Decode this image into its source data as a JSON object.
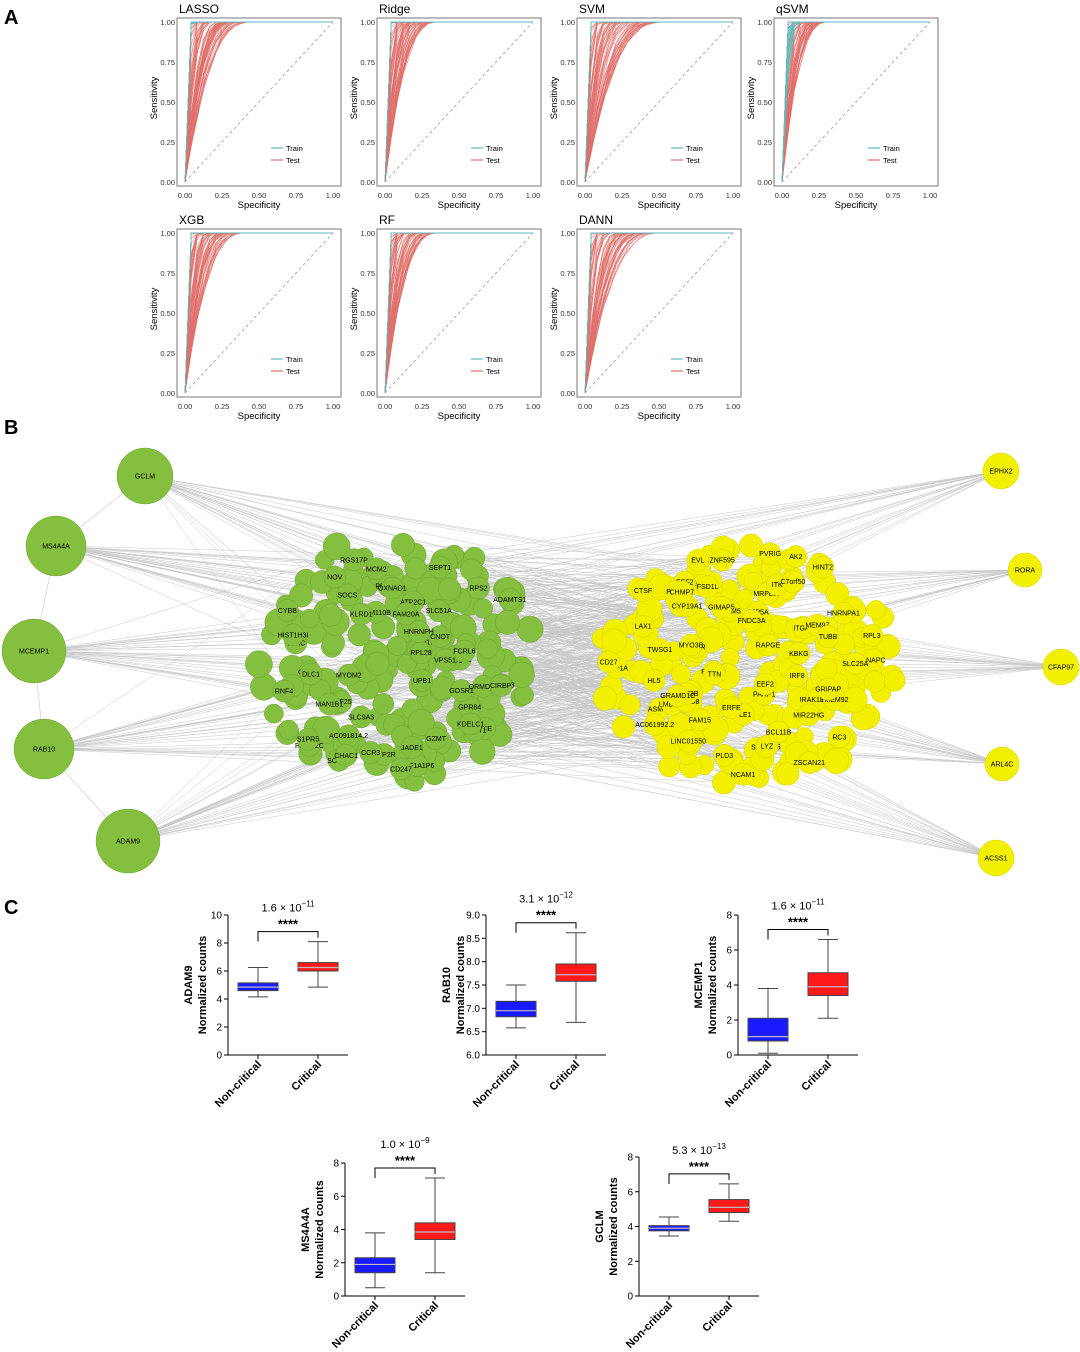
{
  "panels": {
    "a": "A",
    "b": "B",
    "c": "C"
  },
  "chart_data": [
    {
      "type": "line",
      "panel": "A",
      "x_label": "Specificity",
      "y_label": "Sensitivity",
      "x_ticks": [
        "0.00",
        "0.25",
        "0.50",
        "0.75",
        "1.00"
      ],
      "y_ticks": [
        "0.00",
        "0.25",
        "0.50",
        "0.75",
        "1.00"
      ],
      "xlim": [
        0,
        1
      ],
      "ylim": [
        0,
        1
      ],
      "legend": [
        {
          "name": "Train",
          "color": "#5fbcbf"
        },
        {
          "name": "Test",
          "color": "#e0706a"
        }
      ],
      "legend_position": "bottom-right",
      "diagonal_reference": true,
      "models": [
        {
          "name": "LASSO",
          "train_spread": 0.06,
          "test_spread": 0.45
        },
        {
          "name": "Ridge",
          "train_spread": 0.05,
          "test_spread": 0.35
        },
        {
          "name": "SVM",
          "train_spread": 0.01,
          "test_spread": 0.55
        },
        {
          "name": "qSVM",
          "train_spread": 0.14,
          "test_spread": 0.3
        },
        {
          "name": "XGB",
          "train_spread": 0.02,
          "test_spread": 0.4
        },
        {
          "name": "RF",
          "train_spread": 0.02,
          "test_spread": 0.35
        },
        {
          "name": "DANN",
          "train_spread": 0.01,
          "test_spread": 0.5
        }
      ]
    },
    {
      "type": "network",
      "panel": "B",
      "hub_nodes": [
        "GCLM",
        "MS4A4A",
        "MCEMP1",
        "RAB10",
        "ADAM9"
      ],
      "right_nodes": [
        "EPHX2",
        "RORA",
        "CFAP97",
        "ARL4C",
        "ACSS1"
      ],
      "green_labeled": [
        "NLRP2",
        "CD177",
        "ATP2C1",
        "UPB1",
        "FAM110B",
        "CYBB",
        "ADAMTS1",
        "EEF1A1P6",
        "RPS2",
        "GPR84",
        "GOSR1",
        "SLC51A",
        "NFATC3",
        "PPP2R",
        "TCF25",
        "ACE",
        "NOV",
        "TMTC1",
        "KLRD1",
        "FCGR2C",
        "CXCR2",
        "TRAC",
        "DLC1",
        "RPL28",
        "JADE1",
        "ORMDL3",
        "HIST1H3I",
        "MYOM2",
        "VPS51",
        "FAM20A",
        "CIRBP",
        "PRSS23",
        "NUDT1",
        "FCRL6",
        "KDELC1",
        "MAN1B1",
        "AC091814.2",
        "CCR3",
        "GZMT",
        "S1PR5",
        "SCN8A",
        "CNOT",
        "MCM2",
        "SEPT1",
        "OXNAD1",
        "CD247",
        "CHAC1",
        "RNF4",
        "HNRNPH",
        "SLC9A3",
        "SOCS",
        "RGS17P"
      ],
      "yellow_labeled": [
        "ASMTL",
        "PVRIG",
        "AC061992.2",
        "IRAK1BP1",
        "IRF8",
        "HL5",
        "ANAPC",
        "FAM17",
        "HNRNPA1",
        "CYP19A1",
        "EEF2",
        "ICAM5",
        "KBKG",
        "RC3",
        "EVL",
        "TMEM92",
        "HIP1R",
        "DCP1A",
        "TLE1",
        "AK2",
        "PDGFD",
        "RPL3",
        "FSD1L",
        "SIGLEC5",
        "LMBR1L",
        "SATB2",
        "TBC1D8",
        "CD27",
        "LAX1",
        "ATP5A",
        "PARP1",
        "TWSG1",
        "FNDC3A",
        "ITGA4",
        "LYZ",
        "BCL11B",
        "PDE3B",
        "GRAMD1C",
        "EEF2",
        "ZSCAN21",
        "GIMAP5",
        "MEM97",
        "PLD3",
        "HINT2",
        "FAM15",
        "MYO3B",
        "RAPGE",
        "ERFE",
        "GRIPAP",
        "MRPL37",
        "TUBB",
        "TTN",
        "ZNF595",
        "MIR22HG",
        "PASK",
        "NCAM1",
        "LINC01550",
        "SLC25A",
        "ITK",
        "C7orf50",
        "CTSF",
        "CHMP7"
      ]
    },
    {
      "type": "box",
      "panel": "C",
      "gene": "ADAM9",
      "y_label_gene": "ADAM9",
      "y_label_unit": "Normalized counts",
      "categories": [
        "Non-critical",
        "Critical"
      ],
      "colors": [
        "#1a1aff",
        "#ff1a1a"
      ],
      "p_mantissa": "1.6",
      "p_exponent": "−11",
      "significance": "****",
      "y_ticks": [
        0,
        2,
        4,
        6,
        8,
        10
      ],
      "ylim": [
        0,
        10
      ],
      "stats": [
        {
          "min": 4.15,
          "q1": 4.6,
          "median": 4.85,
          "q3": 5.15,
          "max": 6.25
        },
        {
          "min": 4.85,
          "q1": 6.0,
          "median": 6.25,
          "q3": 6.6,
          "max": 8.1
        }
      ]
    },
    {
      "type": "box",
      "panel": "C",
      "gene": "RAB10",
      "y_label_gene": "RAB10",
      "y_label_unit": "Normalized counts",
      "categories": [
        "Non-critical",
        "Critical"
      ],
      "colors": [
        "#1a1aff",
        "#ff1a1a"
      ],
      "p_mantissa": "3.1",
      "p_exponent": "−12",
      "significance": "****",
      "y_ticks": [
        "6.0",
        "6.5",
        "7.0",
        "7.5",
        "8.0",
        "8.5",
        "9.0"
      ],
      "ylim": [
        6.0,
        9.0
      ],
      "stats": [
        {
          "min": 6.58,
          "q1": 6.82,
          "median": 6.95,
          "q3": 7.15,
          "max": 7.5
        },
        {
          "min": 6.7,
          "q1": 7.58,
          "median": 7.72,
          "q3": 7.95,
          "max": 8.62
        }
      ]
    },
    {
      "type": "box",
      "panel": "C",
      "gene": "MCEMP1",
      "y_label_gene": "MCEMP1",
      "y_label_unit": "Normalized counts",
      "categories": [
        "Non-critical",
        "Critical"
      ],
      "colors": [
        "#1a1aff",
        "#ff1a1a"
      ],
      "p_mantissa": "1.6",
      "p_exponent": "−11",
      "significance": "****",
      "y_ticks": [
        0,
        2,
        4,
        6,
        8
      ],
      "ylim": [
        0,
        8
      ],
      "stats": [
        {
          "min": 0.1,
          "q1": 0.8,
          "median": 1.05,
          "q3": 2.1,
          "max": 3.8
        },
        {
          "min": 2.1,
          "q1": 3.4,
          "median": 3.9,
          "q3": 4.7,
          "max": 6.6
        }
      ]
    },
    {
      "type": "box",
      "panel": "C",
      "gene": "MS4A4A",
      "y_label_gene": "MS4A4A",
      "y_label_unit": "Normalized counts",
      "categories": [
        "Non-critical",
        "Critical"
      ],
      "colors": [
        "#1a1aff",
        "#ff1a1a"
      ],
      "p_mantissa": "1.0",
      "p_exponent": "−9",
      "significance": "****",
      "y_ticks": [
        0,
        2,
        4,
        6,
        8
      ],
      "ylim": [
        0,
        8
      ],
      "stats": [
        {
          "min": 0.5,
          "q1": 1.4,
          "median": 1.9,
          "q3": 2.3,
          "max": 3.8
        },
        {
          "min": 1.4,
          "q1": 3.4,
          "median": 3.85,
          "q3": 4.4,
          "max": 7.1
        }
      ]
    },
    {
      "type": "box",
      "panel": "C",
      "gene": "GCLM",
      "y_label_gene": "GCLM",
      "y_label_unit": "Normalized counts",
      "categories": [
        "Non-critical",
        "Critical"
      ],
      "colors": [
        "#1a1aff",
        "#ff1a1a"
      ],
      "p_mantissa": "5.3",
      "p_exponent": "−13",
      "significance": "****",
      "y_ticks": [
        0,
        2,
        4,
        6,
        8
      ],
      "ylim": [
        0,
        8
      ],
      "stats": [
        {
          "min": 3.45,
          "q1": 3.75,
          "median": 3.9,
          "q3": 4.05,
          "max": 4.55
        },
        {
          "min": 4.3,
          "q1": 4.8,
          "median": 5.1,
          "q3": 5.55,
          "max": 6.45
        }
      ]
    }
  ]
}
